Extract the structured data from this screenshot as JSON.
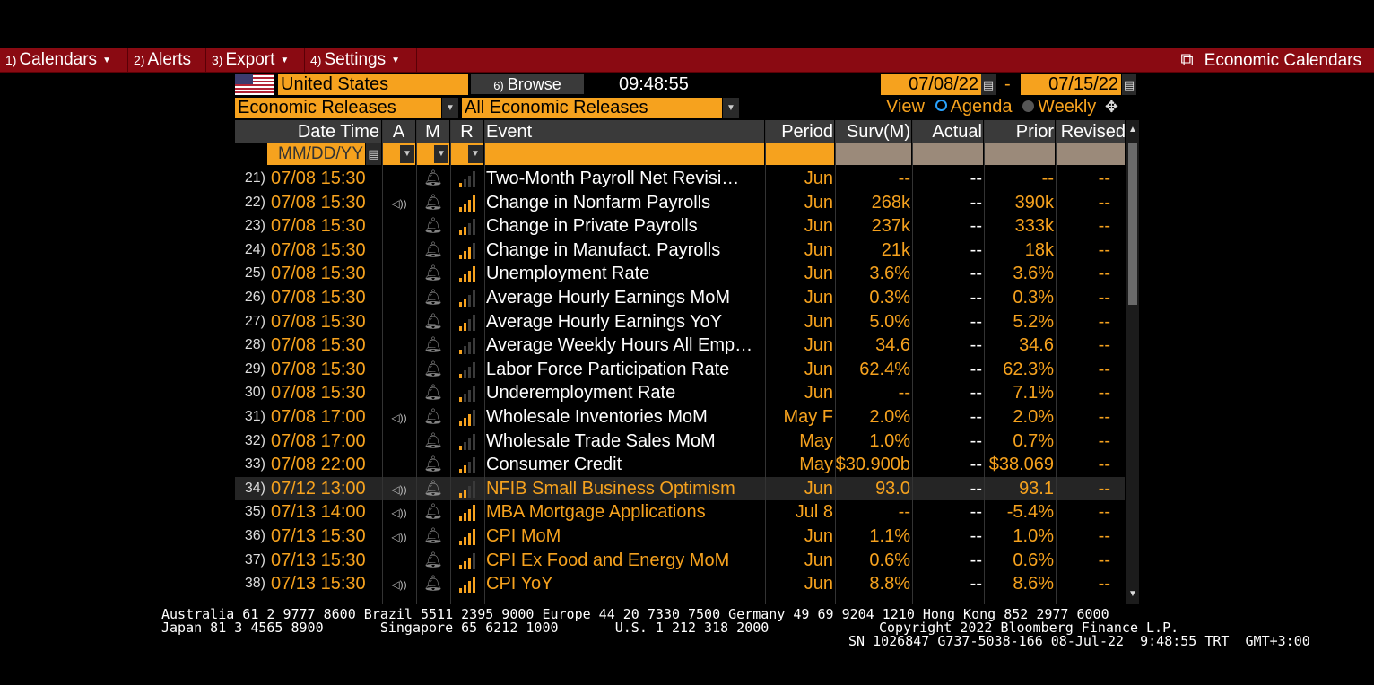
{
  "menu": {
    "items": [
      {
        "num": "1)",
        "label": "Calendars",
        "has_dropdown": true
      },
      {
        "num": "2)",
        "label": "Alerts",
        "has_dropdown": false
      },
      {
        "num": "3)",
        "label": "Export",
        "has_dropdown": true
      },
      {
        "num": "4)",
        "label": "Settings",
        "has_dropdown": true
      }
    ],
    "title": "Economic Calendars"
  },
  "controls": {
    "country": "United States",
    "browse_num": "6)",
    "browse_label": "Browse",
    "time": "09:48:55",
    "date_from": "07/08/22",
    "date_to": "07/15/22",
    "date_separator": "-",
    "category": "Economic Releases",
    "subcategory": "All Economic Releases",
    "view_label": "View",
    "view_agenda": "Agenda",
    "view_weekly": "Weekly",
    "selected_view": "Agenda"
  },
  "table": {
    "headers": {
      "datetime": "Date Time",
      "a": "A",
      "m": "M",
      "r": "R",
      "event": "Event",
      "period": "Period",
      "surv": "Surv(M)",
      "actual": "Actual",
      "prior": "Prior",
      "revised": "Revised"
    },
    "date_filter_placeholder": "MM/DD/YY",
    "rows": [
      {
        "n": "21)",
        "dt": "07/08 15:30",
        "audio": false,
        "r": 1,
        "event": "Two-Month Payroll Net Revisi…",
        "period": "Jun",
        "surv": "--",
        "actual": "--",
        "prior": "--",
        "revised": "--",
        "white": true,
        "highlight": false
      },
      {
        "n": "22)",
        "dt": "07/08 15:30",
        "audio": true,
        "r": 4,
        "event": "Change in Nonfarm Payrolls",
        "period": "Jun",
        "surv": "268k",
        "actual": "--",
        "prior": "390k",
        "revised": "--",
        "white": true,
        "highlight": false
      },
      {
        "n": "23)",
        "dt": "07/08 15:30",
        "audio": false,
        "r": 2,
        "event": "Change in Private Payrolls",
        "period": "Jun",
        "surv": "237k",
        "actual": "--",
        "prior": "333k",
        "revised": "--",
        "white": true,
        "highlight": false
      },
      {
        "n": "24)",
        "dt": "07/08 15:30",
        "audio": false,
        "r": 3,
        "event": "Change in Manufact. Payrolls",
        "period": "Jun",
        "surv": "21k",
        "actual": "--",
        "prior": "18k",
        "revised": "--",
        "white": true,
        "highlight": false
      },
      {
        "n": "25)",
        "dt": "07/08 15:30",
        "audio": false,
        "r": 4,
        "event": "Unemployment Rate",
        "period": "Jun",
        "surv": "3.6%",
        "actual": "--",
        "prior": "3.6%",
        "revised": "--",
        "white": true,
        "highlight": false
      },
      {
        "n": "26)",
        "dt": "07/08 15:30",
        "audio": false,
        "r": 2,
        "event": "Average Hourly Earnings MoM",
        "period": "Jun",
        "surv": "0.3%",
        "actual": "--",
        "prior": "0.3%",
        "revised": "--",
        "white": true,
        "highlight": false
      },
      {
        "n": "27)",
        "dt": "07/08 15:30",
        "audio": false,
        "r": 2,
        "event": "Average Hourly Earnings YoY",
        "period": "Jun",
        "surv": "5.0%",
        "actual": "--",
        "prior": "5.2%",
        "revised": "--",
        "white": true,
        "highlight": false
      },
      {
        "n": "28)",
        "dt": "07/08 15:30",
        "audio": false,
        "r": 1,
        "event": "Average Weekly Hours All Emp…",
        "period": "Jun",
        "surv": "34.6",
        "actual": "--",
        "prior": "34.6",
        "revised": "--",
        "white": true,
        "highlight": false
      },
      {
        "n": "29)",
        "dt": "07/08 15:30",
        "audio": false,
        "r": 1,
        "event": "Labor Force Participation Rate",
        "period": "Jun",
        "surv": "62.4%",
        "actual": "--",
        "prior": "62.3%",
        "revised": "--",
        "white": true,
        "highlight": false
      },
      {
        "n": "30)",
        "dt": "07/08 15:30",
        "audio": false,
        "r": 1,
        "event": "Underemployment Rate",
        "period": "Jun",
        "surv": "--",
        "actual": "--",
        "prior": "7.1%",
        "revised": "--",
        "white": true,
        "highlight": false
      },
      {
        "n": "31)",
        "dt": "07/08 17:00",
        "audio": true,
        "r": 3,
        "event": "Wholesale Inventories MoM",
        "period": "May F",
        "surv": "2.0%",
        "actual": "--",
        "prior": "2.0%",
        "revised": "--",
        "white": true,
        "highlight": false
      },
      {
        "n": "32)",
        "dt": "07/08 17:00",
        "audio": false,
        "r": 1,
        "event": "Wholesale Trade Sales MoM",
        "period": "May",
        "surv": "1.0%",
        "actual": "--",
        "prior": "0.7%",
        "revised": "--",
        "white": true,
        "highlight": false
      },
      {
        "n": "33)",
        "dt": "07/08 22:00",
        "audio": false,
        "r": 2,
        "event": "Consumer Credit",
        "period": "May",
        "surv": "$30.900b",
        "actual": "--",
        "prior": "$38.069",
        "revised": "--",
        "white": true,
        "highlight": false
      },
      {
        "n": "34)",
        "dt": "07/12 13:00",
        "audio": true,
        "r": 2,
        "event": "NFIB Small Business Optimism",
        "period": "Jun",
        "surv": "93.0",
        "actual": "--",
        "prior": "93.1",
        "revised": "--",
        "white": false,
        "highlight": true
      },
      {
        "n": "35)",
        "dt": "07/13 14:00",
        "audio": true,
        "r": 4,
        "event": "MBA Mortgage Applications",
        "period": "Jul 8",
        "surv": "--",
        "actual": "--",
        "prior": "-5.4%",
        "revised": "--",
        "white": false,
        "highlight": false
      },
      {
        "n": "36)",
        "dt": "07/13 15:30",
        "audio": true,
        "r": 4,
        "event": "CPI MoM",
        "period": "Jun",
        "surv": "1.1%",
        "actual": "--",
        "prior": "1.0%",
        "revised": "--",
        "white": false,
        "highlight": false
      },
      {
        "n": "37)",
        "dt": "07/13 15:30",
        "audio": false,
        "r": 3,
        "event": "CPI Ex Food and Energy MoM",
        "period": "Jun",
        "surv": "0.6%",
        "actual": "--",
        "prior": "0.6%",
        "revised": "--",
        "white": false,
        "highlight": false
      },
      {
        "n": "38)",
        "dt": "07/13 15:30",
        "audio": true,
        "r": 4,
        "event": "CPI YoY",
        "period": "Jun",
        "surv": "8.8%",
        "actual": "--",
        "prior": "8.6%",
        "revised": "--",
        "white": false,
        "highlight": false
      }
    ]
  },
  "footer": {
    "line1": "Australia 61 2 9777 8600 Brazil 5511 2395 9000 Europe 44 20 7330 7500 Germany 49 69 9204 1210 Hong Kong 852 2977 6000",
    "line2_left": "Japan 81 3 4565 8900       Singapore 65 6212 1000       U.S. 1 212 318 2000",
    "line2_right": "Copyright 2022 Bloomberg Finance L.P.",
    "line3": "SN 1026847 G737-5038-166 08-Jul-22  9:48:55 TRT  GMT+3:00"
  },
  "colors": {
    "menu_bg": "#8a0a12",
    "amber": "#f6a21e",
    "header_bg": "#3a3a3a",
    "link_blue": "#29a3ff"
  }
}
